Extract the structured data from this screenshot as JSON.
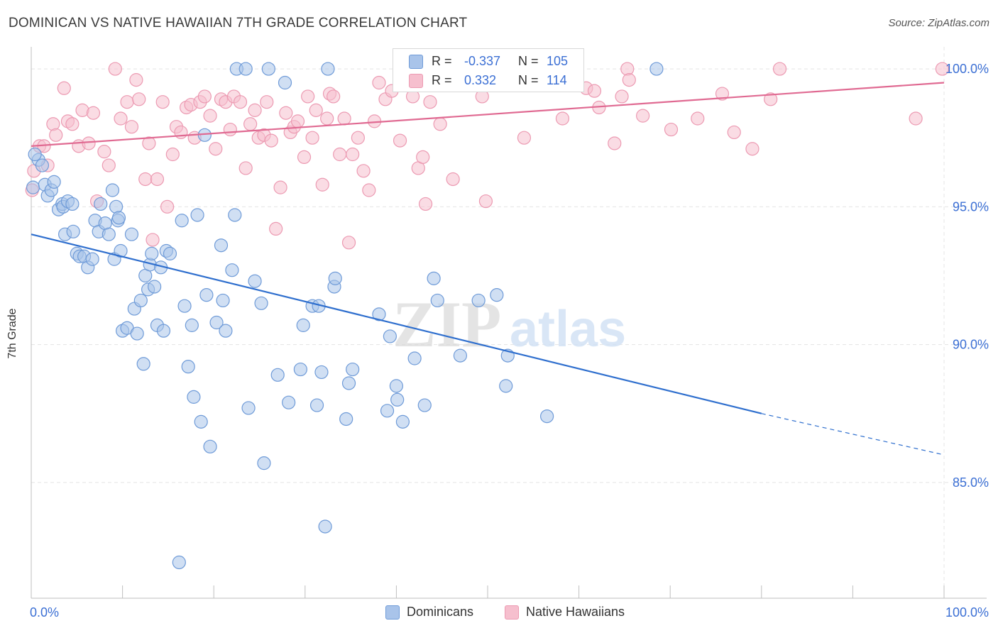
{
  "title": "DOMINICAN VS NATIVE HAWAIIAN 7TH GRADE CORRELATION CHART",
  "source": "Source: ZipAtlas.com",
  "watermark": {
    "zip": "ZIP",
    "atlas": "atlas"
  },
  "colors": {
    "blue_fill": "#a9c4ea",
    "blue_stroke": "#6f9bd8",
    "blue_line": "#2f6fce",
    "pink_fill": "#f6bfce",
    "pink_stroke": "#ec9ab2",
    "pink_line": "#e06a92",
    "tick_label": "#3b6fd4",
    "grid": "#e4e4e4"
  },
  "stats": {
    "dominicans": {
      "r_label": "R =",
      "r_value": "-0.337",
      "n_label": "N =",
      "n_value": "105"
    },
    "hawaiians": {
      "r_label": "R =",
      "r_value": "0.332",
      "n_label": "N =",
      "n_value": "114"
    }
  },
  "legend": {
    "dominicans": "Dominicans",
    "hawaiians": "Native Hawaiians"
  },
  "chart_data": {
    "type": "scatter",
    "xlabel": "",
    "ylabel": "7th Grade",
    "xlim": [
      0,
      100
    ],
    "ylim": [
      80.8,
      100.8
    ],
    "x_tick_labels": [
      "0.0%",
      "100.0%"
    ],
    "y_ticks": [
      {
        "value": 85,
        "label": "85.0%"
      },
      {
        "value": 90,
        "label": "90.0%"
      },
      {
        "value": 95,
        "label": "95.0%"
      },
      {
        "value": 100,
        "label": "100.0%"
      }
    ],
    "grid": true,
    "legend_position": "bottom",
    "series": [
      {
        "name": "Dominicans",
        "trend": {
          "x0": 0,
          "y0": 94.0,
          "x1": 80,
          "y1": 87.5,
          "dash_to_x": 100,
          "dash_to_y": 86.0
        },
        "points": [
          [
            0.2,
            95.7
          ],
          [
            0.8,
            96.7
          ],
          [
            1.2,
            96.5
          ],
          [
            1.5,
            95.8
          ],
          [
            1.8,
            95.4
          ],
          [
            2.2,
            95.6
          ],
          [
            2.5,
            95.9
          ],
          [
            3.0,
            94.9
          ],
          [
            3.4,
            95.1
          ],
          [
            3.5,
            95.0
          ],
          [
            3.7,
            94.0
          ],
          [
            4.0,
            95.2
          ],
          [
            4.5,
            95.1
          ],
          [
            4.6,
            94.1
          ],
          [
            5.0,
            93.3
          ],
          [
            5.3,
            93.2
          ],
          [
            5.8,
            93.2
          ],
          [
            6.2,
            92.8
          ],
          [
            6.7,
            93.1
          ],
          [
            7.0,
            94.5
          ],
          [
            7.4,
            94.1
          ],
          [
            7.6,
            95.1
          ],
          [
            8.1,
            94.4
          ],
          [
            8.5,
            94.0
          ],
          [
            8.9,
            95.6
          ],
          [
            9.1,
            93.1
          ],
          [
            9.3,
            95.0
          ],
          [
            9.5,
            94.5
          ],
          [
            9.6,
            94.6
          ],
          [
            9.8,
            93.4
          ],
          [
            10.0,
            90.5
          ],
          [
            10.5,
            90.6
          ],
          [
            11.0,
            94.0
          ],
          [
            11.3,
            91.3
          ],
          [
            11.6,
            90.4
          ],
          [
            12.0,
            91.6
          ],
          [
            12.3,
            89.3
          ],
          [
            12.5,
            92.5
          ],
          [
            12.8,
            92.0
          ],
          [
            13.0,
            92.9
          ],
          [
            13.2,
            93.3
          ],
          [
            13.5,
            92.1
          ],
          [
            13.8,
            90.7
          ],
          [
            14.2,
            92.8
          ],
          [
            14.5,
            90.5
          ],
          [
            14.8,
            93.4
          ],
          [
            15.2,
            93.3
          ],
          [
            16.2,
            82.1
          ],
          [
            16.5,
            94.5
          ],
          [
            16.8,
            91.4
          ],
          [
            17.2,
            89.2
          ],
          [
            17.6,
            90.7
          ],
          [
            17.8,
            88.1
          ],
          [
            18.2,
            94.7
          ],
          [
            18.6,
            87.2
          ],
          [
            19.0,
            97.6
          ],
          [
            19.2,
            91.8
          ],
          [
            19.6,
            86.3
          ],
          [
            20.3,
            90.8
          ],
          [
            20.8,
            93.6
          ],
          [
            21.0,
            91.6
          ],
          [
            21.3,
            90.5
          ],
          [
            22.0,
            92.7
          ],
          [
            22.3,
            94.7
          ],
          [
            22.5,
            100.0
          ],
          [
            23.5,
            100.0
          ],
          [
            23.8,
            87.7
          ],
          [
            24.5,
            92.3
          ],
          [
            25.2,
            91.5
          ],
          [
            25.5,
            85.7
          ],
          [
            26.0,
            100.0
          ],
          [
            27.0,
            88.9
          ],
          [
            27.8,
            99.5
          ],
          [
            28.2,
            87.9
          ],
          [
            29.5,
            89.1
          ],
          [
            29.8,
            90.7
          ],
          [
            30.8,
            91.4
          ],
          [
            31.3,
            87.8
          ],
          [
            31.5,
            91.4
          ],
          [
            31.8,
            89.0
          ],
          [
            32.2,
            83.4
          ],
          [
            32.5,
            100.0
          ],
          [
            33.2,
            92.1
          ],
          [
            33.3,
            92.4
          ],
          [
            34.5,
            87.3
          ],
          [
            34.8,
            88.6
          ],
          [
            35.2,
            89.1
          ],
          [
            38.1,
            91.1
          ],
          [
            39.0,
            87.6
          ],
          [
            39.3,
            90.3
          ],
          [
            40.0,
            88.5
          ],
          [
            40.1,
            88.0
          ],
          [
            40.7,
            87.2
          ],
          [
            42.0,
            89.5
          ],
          [
            43.1,
            87.8
          ],
          [
            44.1,
            92.4
          ],
          [
            44.5,
            91.6
          ],
          [
            47.0,
            89.6
          ],
          [
            49.0,
            91.6
          ],
          [
            51.0,
            91.8
          ],
          [
            52.0,
            88.5
          ],
          [
            52.2,
            89.6
          ],
          [
            56.5,
            87.4
          ],
          [
            68.5,
            100.0
          ],
          [
            0.4,
            96.9
          ]
        ]
      },
      {
        "name": "Native Hawaiians",
        "trend": {
          "x0": 0,
          "y0": 97.2,
          "x1": 100,
          "y1": 99.5
        },
        "points": [
          [
            0.3,
            96.3
          ],
          [
            0.9,
            97.2
          ],
          [
            1.4,
            97.2
          ],
          [
            1.8,
            96.5
          ],
          [
            2.4,
            98.0
          ],
          [
            2.7,
            97.6
          ],
          [
            3.6,
            99.3
          ],
          [
            4.0,
            98.1
          ],
          [
            4.5,
            98.0
          ],
          [
            5.2,
            97.2
          ],
          [
            5.6,
            98.5
          ],
          [
            6.3,
            97.3
          ],
          [
            6.8,
            98.4
          ],
          [
            7.2,
            95.2
          ],
          [
            8.0,
            97.0
          ],
          [
            8.5,
            96.5
          ],
          [
            9.2,
            100.0
          ],
          [
            9.8,
            98.2
          ],
          [
            10.5,
            98.8
          ],
          [
            11.0,
            97.9
          ],
          [
            11.5,
            99.6
          ],
          [
            11.8,
            98.9
          ],
          [
            12.5,
            96.0
          ],
          [
            12.9,
            97.3
          ],
          [
            13.3,
            93.8
          ],
          [
            13.8,
            96.0
          ],
          [
            14.4,
            98.8
          ],
          [
            14.9,
            95.0
          ],
          [
            15.5,
            96.9
          ],
          [
            15.9,
            97.9
          ],
          [
            16.4,
            97.7
          ],
          [
            17.0,
            98.6
          ],
          [
            17.5,
            98.7
          ],
          [
            17.9,
            97.5
          ],
          [
            18.5,
            98.8
          ],
          [
            19.0,
            99.0
          ],
          [
            19.6,
            98.3
          ],
          [
            20.2,
            97.1
          ],
          [
            20.8,
            98.9
          ],
          [
            21.3,
            98.8
          ],
          [
            21.8,
            97.8
          ],
          [
            22.2,
            99.0
          ],
          [
            22.9,
            98.8
          ],
          [
            23.5,
            96.4
          ],
          [
            24.0,
            98.0
          ],
          [
            24.5,
            98.5
          ],
          [
            24.9,
            97.5
          ],
          [
            25.5,
            97.6
          ],
          [
            25.8,
            98.8
          ],
          [
            26.3,
            97.4
          ],
          [
            26.8,
            94.2
          ],
          [
            27.3,
            95.7
          ],
          [
            27.9,
            98.4
          ],
          [
            28.4,
            97.7
          ],
          [
            28.8,
            97.9
          ],
          [
            29.2,
            98.1
          ],
          [
            29.9,
            96.8
          ],
          [
            30.3,
            99.0
          ],
          [
            30.8,
            97.5
          ],
          [
            31.2,
            98.5
          ],
          [
            31.9,
            95.8
          ],
          [
            32.4,
            98.2
          ],
          [
            32.7,
            99.1
          ],
          [
            33.1,
            99.0
          ],
          [
            33.8,
            96.9
          ],
          [
            34.3,
            98.2
          ],
          [
            34.8,
            93.7
          ],
          [
            35.2,
            96.9
          ],
          [
            35.8,
            97.5
          ],
          [
            36.4,
            96.3
          ],
          [
            37.0,
            95.6
          ],
          [
            37.6,
            98.1
          ],
          [
            38.1,
            99.5
          ],
          [
            38.8,
            98.9
          ],
          [
            39.5,
            99.2
          ],
          [
            40.4,
            97.4
          ],
          [
            41.0,
            100.0
          ],
          [
            41.8,
            99.0
          ],
          [
            42.4,
            96.4
          ],
          [
            42.9,
            96.8
          ],
          [
            43.2,
            95.1
          ],
          [
            43.7,
            98.8
          ],
          [
            44.3,
            100.0
          ],
          [
            44.8,
            98.0
          ],
          [
            45.7,
            100.0
          ],
          [
            46.2,
            96.0
          ],
          [
            47.0,
            99.8
          ],
          [
            48.1,
            100.0
          ],
          [
            49.4,
            99.0
          ],
          [
            49.8,
            95.2
          ],
          [
            51.3,
            100.0
          ],
          [
            53.2,
            100.0
          ],
          [
            54.0,
            97.5
          ],
          [
            56.0,
            100.0
          ],
          [
            57.4,
            100.0
          ],
          [
            58.2,
            98.2
          ],
          [
            60.8,
            99.3
          ],
          [
            61.7,
            99.2
          ],
          [
            62.2,
            98.6
          ],
          [
            63.9,
            97.3
          ],
          [
            64.7,
            99.0
          ],
          [
            65.3,
            100.0
          ],
          [
            67.0,
            98.3
          ],
          [
            70.1,
            97.8
          ],
          [
            73.0,
            98.2
          ],
          [
            75.7,
            99.1
          ],
          [
            77.0,
            97.7
          ],
          [
            79.0,
            97.1
          ],
          [
            81.0,
            98.9
          ],
          [
            82.0,
            100.0
          ],
          [
            96.9,
            98.2
          ],
          [
            99.8,
            100.0
          ],
          [
            0.1,
            95.6
          ],
          [
            65.5,
            99.6
          ]
        ]
      }
    ]
  }
}
